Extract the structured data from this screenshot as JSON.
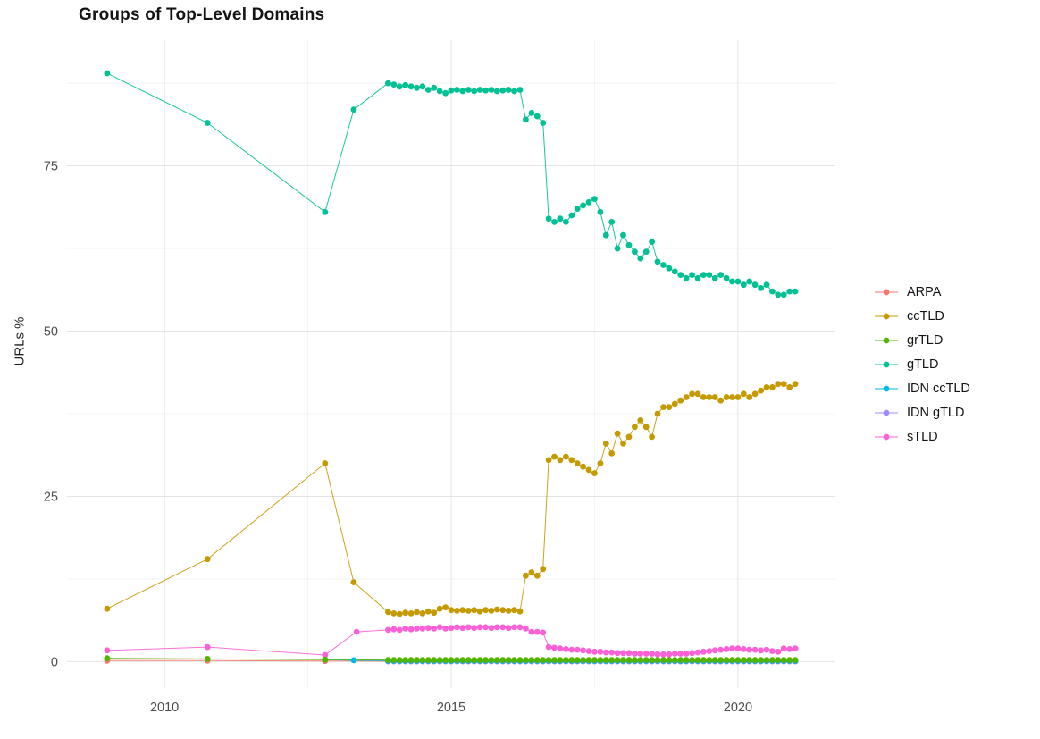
{
  "chart_data": {
    "type": "line",
    "point_markers": true,
    "title": "Groups of Top-Level Domains",
    "xlabel": "",
    "ylabel": "URLs %",
    "xlim": [
      2008.3,
      2021.7
    ],
    "ylim": [
      -4,
      94
    ],
    "x_ticks": [
      2010,
      2015,
      2020
    ],
    "x_tick_labels": [
      "2010",
      "2015",
      "2020"
    ],
    "x_minor_ticks": [
      2012.5,
      2017.5
    ],
    "y_ticks": [
      0,
      25,
      50,
      75
    ],
    "y_tick_labels": [
      "0",
      "25",
      "50",
      "75"
    ],
    "y_minor_ticks": [
      12.5,
      37.5,
      62.5,
      87.5
    ],
    "grid": true,
    "legend_position": "right",
    "colors": {
      "major_grid": "#e4e4e4",
      "minor_grid": "#f1f1f1",
      "axis_text": "#4d4d4d",
      "background": "#ffffff"
    },
    "series": [
      {
        "name": "ARPA",
        "color": "#F8766D",
        "z": 1,
        "points": [
          [
            2009.0,
            0.15
          ],
          [
            2010.75,
            0.15
          ],
          [
            2012.8,
            0.1
          ]
        ],
        "dense": {
          "x0": 2013.9,
          "dx": 0.1,
          "n": 72,
          "const": 0.05
        }
      },
      {
        "name": "ccTLD",
        "color": "#C49A00",
        "z": 5,
        "points": [
          [
            2009.0,
            8.0
          ],
          [
            2010.75,
            15.5
          ],
          [
            2012.8,
            30.0
          ],
          [
            2013.3,
            12.0
          ]
        ],
        "dense": {
          "x0": 2013.9,
          "dx": 0.1,
          "values": [
            7.5,
            7.3,
            7.2,
            7.4,
            7.3,
            7.5,
            7.3,
            7.6,
            7.4,
            8.0,
            8.2,
            7.8,
            7.7,
            7.8,
            7.7,
            7.8,
            7.6,
            7.8,
            7.7,
            7.9,
            7.8,
            7.7,
            7.8,
            7.6,
            13.0,
            13.5,
            13.0,
            14.0,
            30.5,
            31.0,
            30.5,
            31.0,
            30.5,
            30.0,
            29.5,
            29.0,
            28.5,
            30.0,
            33.0,
            31.5,
            34.5,
            33.0,
            34.0,
            35.5,
            36.5,
            35.5,
            34.0,
            37.5,
            38.5,
            38.5,
            39.0,
            39.5,
            40.0,
            40.5,
            40.5,
            40.0,
            40.0,
            40.0,
            39.5,
            40.0,
            40.0,
            40.0,
            40.5,
            40.0,
            40.5,
            41.0,
            41.5,
            41.5,
            42.0,
            42.0,
            41.5,
            42.0
          ]
        }
      },
      {
        "name": "grTLD",
        "color": "#53B400",
        "z": 7,
        "points": [
          [
            2009.0,
            0.5
          ],
          [
            2010.75,
            0.4
          ],
          [
            2012.8,
            0.3
          ]
        ],
        "dense": {
          "x0": 2013.9,
          "dx": 0.1,
          "n": 72,
          "const": 0.25
        }
      },
      {
        "name": "gTLD",
        "color": "#00C094",
        "z": 4,
        "points": [
          [
            2009.0,
            89.0
          ],
          [
            2010.75,
            81.5
          ],
          [
            2012.8,
            68.0
          ],
          [
            2013.3,
            83.5
          ]
        ],
        "dense": {
          "x0": 2013.9,
          "dx": 0.1,
          "values": [
            87.5,
            87.3,
            87.0,
            87.2,
            87.0,
            86.8,
            87.0,
            86.5,
            86.8,
            86.3,
            86.0,
            86.4,
            86.5,
            86.3,
            86.5,
            86.3,
            86.5,
            86.4,
            86.5,
            86.3,
            86.4,
            86.5,
            86.3,
            86.5,
            82.0,
            83.0,
            82.5,
            81.5,
            67.0,
            66.5,
            67.0,
            66.5,
            67.5,
            68.5,
            69.0,
            69.5,
            70.0,
            68.0,
            64.5,
            66.5,
            62.5,
            64.5,
            63.0,
            62.0,
            61.0,
            62.0,
            63.5,
            60.5,
            60.0,
            59.5,
            59.0,
            58.5,
            58.0,
            58.5,
            58.0,
            58.5,
            58.5,
            58.0,
            58.5,
            58.0,
            57.5,
            57.5,
            57.0,
            57.5,
            57.0,
            56.5,
            57.0,
            56.0,
            55.5,
            55.5,
            56.0,
            56.0
          ]
        }
      },
      {
        "name": "IDN ccTLD",
        "color": "#00B6EB",
        "z": 3,
        "points": [
          [
            2012.8,
            0.3
          ],
          [
            2013.3,
            0.2
          ]
        ],
        "dense": {
          "x0": 2013.9,
          "dx": 0.1,
          "n": 72,
          "const": 0.12
        }
      },
      {
        "name": "IDN gTLD",
        "color": "#A58AFF",
        "z": 2,
        "points": [],
        "dense": {
          "x0": 2013.9,
          "dx": 0.1,
          "n": 72,
          "const": 0.05
        }
      },
      {
        "name": "sTLD",
        "color": "#FB61D7",
        "z": 6,
        "points": [
          [
            2009.0,
            1.7
          ],
          [
            2010.75,
            2.2
          ],
          [
            2012.8,
            1.0
          ],
          [
            2013.35,
            4.5
          ]
        ],
        "dense": {
          "x0": 2013.9,
          "dx": 0.1,
          "values": [
            4.8,
            4.9,
            4.8,
            5.0,
            4.9,
            5.0,
            5.0,
            5.1,
            5.0,
            5.2,
            5.0,
            5.1,
            5.2,
            5.1,
            5.2,
            5.1,
            5.2,
            5.2,
            5.1,
            5.2,
            5.2,
            5.1,
            5.2,
            5.2,
            5.0,
            4.5,
            4.5,
            4.4,
            2.2,
            2.1,
            2.0,
            1.9,
            1.8,
            1.8,
            1.7,
            1.6,
            1.5,
            1.5,
            1.4,
            1.4,
            1.3,
            1.3,
            1.3,
            1.2,
            1.2,
            1.2,
            1.2,
            1.1,
            1.1,
            1.1,
            1.2,
            1.2,
            1.2,
            1.3,
            1.4,
            1.5,
            1.6,
            1.7,
            1.8,
            1.9,
            2.0,
            2.0,
            1.9,
            1.8,
            1.8,
            1.7,
            1.8,
            1.6,
            1.5,
            2.0,
            1.9,
            2.0
          ]
        }
      }
    ]
  }
}
